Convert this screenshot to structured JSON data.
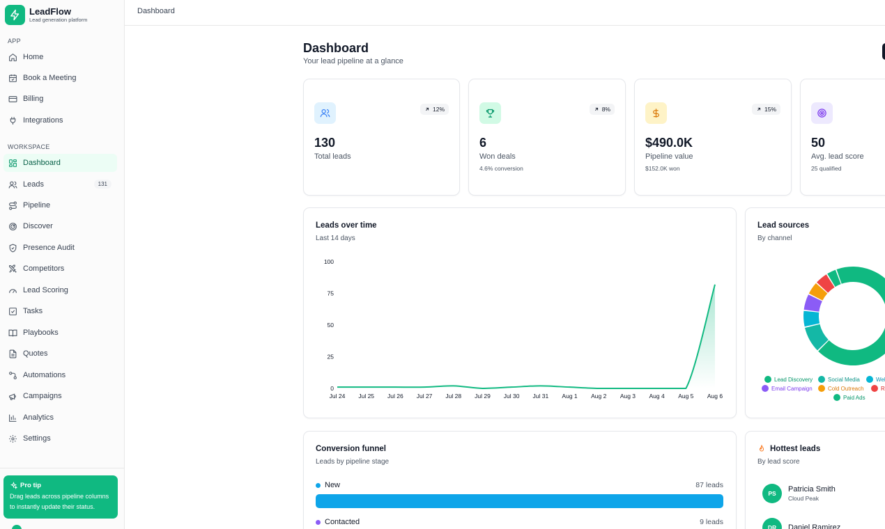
{
  "brand": {
    "name": "LeadFlow",
    "subtitle": "Lead generation platform"
  },
  "sidebar": {
    "app_label": "APP",
    "app_items": [
      {
        "label": "Home",
        "icon": "home-icon"
      },
      {
        "label": "Book a Meeting",
        "icon": "calendar-icon"
      },
      {
        "label": "Billing",
        "icon": "credit-card-icon"
      },
      {
        "label": "Integrations",
        "icon": "plug-icon"
      }
    ],
    "workspace_label": "WORKSPACE",
    "workspace_items": [
      {
        "label": "Dashboard",
        "icon": "grid-icon",
        "active": true
      },
      {
        "label": "Leads",
        "icon": "users-icon",
        "badge": "131"
      },
      {
        "label": "Pipeline",
        "icon": "route-icon"
      },
      {
        "label": "Discover",
        "icon": "radar-icon"
      },
      {
        "label": "Presence Audit",
        "icon": "shield-icon"
      },
      {
        "label": "Competitors",
        "icon": "swords-icon"
      },
      {
        "label": "Lead Scoring",
        "icon": "gauge-icon"
      },
      {
        "label": "Tasks",
        "icon": "checkbox-icon"
      },
      {
        "label": "Playbooks",
        "icon": "book-icon"
      },
      {
        "label": "Quotes",
        "icon": "file-icon"
      },
      {
        "label": "Automations",
        "icon": "workflow-icon"
      },
      {
        "label": "Campaigns",
        "icon": "megaphone-icon"
      },
      {
        "label": "Analytics",
        "icon": "bar-chart-icon"
      },
      {
        "label": "Settings",
        "icon": "gear-icon"
      }
    ],
    "protip": {
      "title": "Pro tip",
      "text": "Drag leads across pipeline columns to instantly update their status."
    }
  },
  "topbar": {
    "breadcrumb": "Dashboard"
  },
  "header": {
    "title": "Dashboard",
    "subtitle": "Your lead pipeline at a glance"
  },
  "stats": [
    {
      "icon": "users-icon",
      "badge": "12%",
      "value": "130",
      "label": "Total leads",
      "sub": "",
      "color": "#3b82f6",
      "bg": "#e0f2fe"
    },
    {
      "icon": "trophy-icon",
      "badge": "8%",
      "value": "6",
      "label": "Won deals",
      "sub": "4.6% conversion",
      "color": "#059669",
      "bg": "#d1fae5"
    },
    {
      "icon": "dollar-icon",
      "badge": "15%",
      "value": "$490.0K",
      "label": "Pipeline value",
      "sub": "$152.0K won",
      "color": "#d97706",
      "bg": "#fef3c7"
    },
    {
      "icon": "target-icon",
      "badge": "",
      "value": "50",
      "label": "Avg. lead score",
      "sub": "25 qualified",
      "color": "#7c3aed",
      "bg": "#ede9fe"
    }
  ],
  "leads_chart": {
    "title": "Leads over time",
    "subtitle": "Last 14 days"
  },
  "chart_data": [
    {
      "type": "area",
      "title": "Leads over time",
      "subtitle": "Last 14 days",
      "x": [
        "Jul 24",
        "Jul 25",
        "Jul 26",
        "Jul 27",
        "Jul 28",
        "Jul 29",
        "Jul 30",
        "Jul 31",
        "Aug 1",
        "Aug 2",
        "Aug 3",
        "Aug 4",
        "Aug 5",
        "Aug 6"
      ],
      "values": [
        1,
        1,
        1,
        1,
        2,
        0,
        1,
        2,
        1,
        0,
        0,
        0,
        0,
        82
      ],
      "yticks": [
        0,
        25,
        50,
        75,
        100
      ],
      "ylim": [
        0,
        100
      ],
      "color": "#10b981",
      "grid": false
    },
    {
      "type": "pie",
      "title": "Lead sources",
      "subtitle": "By channel",
      "categories": [
        "Lead Discovery",
        "Social Media",
        "Website",
        "Email Campaign",
        "Cold Outreach",
        "Referral",
        "Paid Ads"
      ],
      "values": [
        62,
        8,
        5,
        5,
        4,
        4,
        3
      ],
      "colors": [
        "#10b981",
        "#14b8a6",
        "#06b6d4",
        "#8b5cf6",
        "#f59e0b",
        "#ef4444",
        "#10b981"
      ],
      "legend_labels_visible": [
        "Lead Discovery",
        "Social Media",
        "Web",
        "Email Campaign",
        "Cold Outreach",
        "Re",
        "Paid Ads"
      ]
    }
  ],
  "sources": {
    "title": "Lead sources",
    "subtitle": "By channel"
  },
  "funnel": {
    "title": "Conversion funnel",
    "subtitle": "Leads by pipeline stage",
    "rows": [
      {
        "label": "New",
        "count": "87 leads",
        "color": "#0ea5e9",
        "fraction": 1.0
      },
      {
        "label": "Contacted",
        "count": "9 leads",
        "color": "#8b5cf6",
        "fraction": 0.1
      }
    ]
  },
  "hottest": {
    "title": "Hottest leads",
    "subtitle": "By lead score",
    "leads": [
      {
        "initials": "PS",
        "name": "Patricia Smith",
        "company": "Cloud Peak"
      },
      {
        "initials": "DR",
        "name": "Daniel Ramirez",
        "company": ""
      }
    ]
  }
}
